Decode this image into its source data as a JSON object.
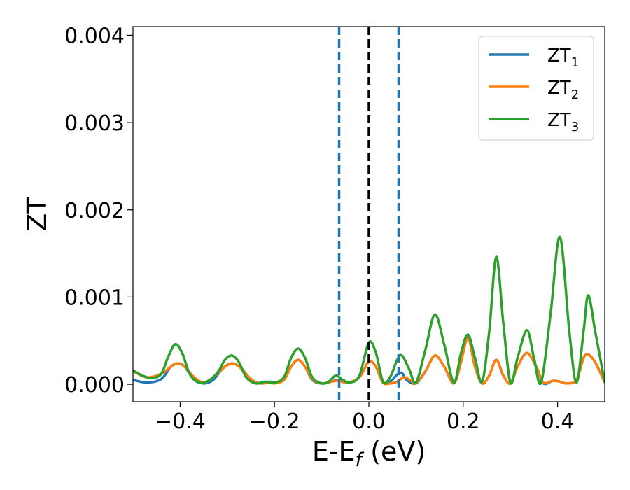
{
  "chart_data": {
    "type": "line",
    "xlabel": "E-E",
    "xlabel_sub": "f",
    "xlabel_unit": " (eV)",
    "ylabel": "ZT",
    "xlim": [
      -0.5,
      0.5
    ],
    "ylim": [
      -0.0002,
      0.0041
    ],
    "xticks": [
      -0.4,
      -0.2,
      0.0,
      0.2,
      0.4
    ],
    "xtick_labels": [
      "−0.4",
      "−0.2",
      "0.0",
      "0.2",
      "0.4"
    ],
    "yticks": [
      0.0,
      0.001,
      0.002,
      0.003,
      0.004
    ],
    "ytick_labels": [
      "0.000",
      "0.001",
      "0.002",
      "0.003",
      "0.004"
    ],
    "grid": false,
    "legend_position": "top-right",
    "vlines": [
      {
        "x": -0.063,
        "color": "#1f77b4",
        "style": "dashed"
      },
      {
        "x": 0.0,
        "color": "#000000",
        "style": "dashed"
      },
      {
        "x": 0.063,
        "color": "#1f77b4",
        "style": "dashed"
      }
    ],
    "series": [
      {
        "name": "ZT",
        "sub": "1",
        "color": "#1f77b4",
        "points": [
          [
            -0.5,
            5e-05
          ],
          [
            -0.47,
            2e-05
          ],
          [
            -0.44,
            6e-05
          ],
          [
            -0.42,
            0.0002
          ],
          [
            -0.405,
            0.00024
          ],
          [
            -0.39,
            0.0002
          ],
          [
            -0.37,
            5e-05
          ],
          [
            -0.35,
            1e-05
          ],
          [
            -0.33,
            5e-05
          ],
          [
            -0.31,
            0.00018
          ],
          [
            -0.29,
            0.00024
          ],
          [
            -0.27,
            0.00018
          ],
          [
            -0.25,
            5e-05
          ],
          [
            -0.23,
            1e-05
          ],
          [
            -0.21,
            3e-05
          ],
          [
            -0.2,
            2e-05
          ],
          [
            -0.18,
            5e-05
          ],
          [
            -0.165,
            0.0002
          ],
          [
            -0.15,
            0.00028
          ],
          [
            -0.135,
            0.0002
          ],
          [
            -0.12,
            5e-05
          ],
          [
            -0.1,
            1e-05
          ],
          [
            -0.08,
            3e-05
          ],
          [
            -0.065,
            5e-05
          ],
          [
            -0.045,
            2e-05
          ],
          [
            -0.02,
            8e-05
          ],
          [
            0.0,
            0.00026
          ],
          [
            0.015,
            0.0002
          ],
          [
            0.03,
            2e-05
          ],
          [
            0.045,
            3e-05
          ],
          [
            0.06,
            0.00011
          ],
          [
            0.07,
            0.00013
          ],
          [
            0.08,
            5e-05
          ],
          [
            0.1,
            1e-05
          ],
          [
            0.12,
            0.00015
          ],
          [
            0.14,
            0.00033
          ],
          [
            0.16,
            0.0002
          ],
          [
            0.18,
            1e-05
          ],
          [
            0.195,
            0.00025
          ],
          [
            0.21,
            0.00055
          ],
          [
            0.225,
            0.0002
          ],
          [
            0.24,
            1e-05
          ],
          [
            0.255,
            0.0001
          ],
          [
            0.27,
            0.00028
          ],
          [
            0.285,
            0.0001
          ],
          [
            0.3,
            1e-05
          ],
          [
            0.315,
            0.0002
          ],
          [
            0.335,
            0.00036
          ],
          [
            0.355,
            0.0002
          ],
          [
            0.37,
            1e-05
          ],
          [
            0.39,
            4e-05
          ],
          [
            0.405,
            3e-05
          ],
          [
            0.42,
            1e-05
          ],
          [
            0.44,
            5e-05
          ],
          [
            0.455,
            0.0003
          ],
          [
            0.465,
            0.00034
          ],
          [
            0.48,
            0.00025
          ],
          [
            0.5,
            2e-05
          ]
        ]
      },
      {
        "name": "ZT",
        "sub": "2",
        "color": "#ff7f0e",
        "points": [
          [
            -0.5,
            0.00015
          ],
          [
            -0.47,
            8e-05
          ],
          [
            -0.44,
            0.00012
          ],
          [
            -0.42,
            0.0002
          ],
          [
            -0.405,
            0.00024
          ],
          [
            -0.39,
            0.0002
          ],
          [
            -0.37,
            8e-05
          ],
          [
            -0.35,
            2e-05
          ],
          [
            -0.33,
            8e-05
          ],
          [
            -0.31,
            0.00018
          ],
          [
            -0.29,
            0.00024
          ],
          [
            -0.27,
            0.00018
          ],
          [
            -0.25,
            6e-05
          ],
          [
            -0.23,
            1e-05
          ],
          [
            -0.21,
            2e-05
          ],
          [
            -0.2,
            1e-05
          ],
          [
            -0.18,
            5e-05
          ],
          [
            -0.165,
            0.0002
          ],
          [
            -0.15,
            0.00028
          ],
          [
            -0.135,
            0.0002
          ],
          [
            -0.12,
            6e-05
          ],
          [
            -0.1,
            1e-05
          ],
          [
            -0.08,
            3e-05
          ],
          [
            -0.065,
            4e-05
          ],
          [
            -0.045,
            2e-05
          ],
          [
            -0.02,
            8e-05
          ],
          [
            0.0,
            0.00026
          ],
          [
            0.015,
            0.0002
          ],
          [
            0.03,
            2e-05
          ],
          [
            0.045,
            1e-05
          ],
          [
            0.06,
            3e-05
          ],
          [
            0.075,
            8e-05
          ],
          [
            0.09,
            4e-05
          ],
          [
            0.1,
            1e-05
          ],
          [
            0.12,
            0.00015
          ],
          [
            0.14,
            0.00033
          ],
          [
            0.16,
            0.0002
          ],
          [
            0.18,
            1e-05
          ],
          [
            0.195,
            0.00025
          ],
          [
            0.21,
            0.00053
          ],
          [
            0.225,
            0.0002
          ],
          [
            0.24,
            1e-05
          ],
          [
            0.255,
            0.0001
          ],
          [
            0.27,
            0.00028
          ],
          [
            0.285,
            0.0001
          ],
          [
            0.3,
            1e-05
          ],
          [
            0.315,
            0.0002
          ],
          [
            0.335,
            0.00036
          ],
          [
            0.355,
            0.0002
          ],
          [
            0.37,
            2e-05
          ],
          [
            0.39,
            4e-05
          ],
          [
            0.405,
            3e-05
          ],
          [
            0.42,
            1e-05
          ],
          [
            0.44,
            5e-05
          ],
          [
            0.455,
            0.0003
          ],
          [
            0.465,
            0.00034
          ],
          [
            0.48,
            0.00025
          ],
          [
            0.5,
            2e-05
          ]
        ]
      },
      {
        "name": "ZT",
        "sub": "3",
        "color": "#2ca02c",
        "points": [
          [
            -0.5,
            0.00016
          ],
          [
            -0.48,
            0.0001
          ],
          [
            -0.46,
            7e-05
          ],
          [
            -0.44,
            0.00012
          ],
          [
            -0.425,
            0.00032
          ],
          [
            -0.41,
            0.00046
          ],
          [
            -0.395,
            0.00035
          ],
          [
            -0.38,
            0.00012
          ],
          [
            -0.36,
            2e-05
          ],
          [
            -0.34,
            4e-05
          ],
          [
            -0.32,
            0.00014
          ],
          [
            -0.305,
            0.00028
          ],
          [
            -0.29,
            0.00033
          ],
          [
            -0.275,
            0.00025
          ],
          [
            -0.26,
            8e-05
          ],
          [
            -0.24,
            1e-05
          ],
          [
            -0.22,
            3e-05
          ],
          [
            -0.2,
            2e-05
          ],
          [
            -0.18,
            8e-05
          ],
          [
            -0.165,
            0.0003
          ],
          [
            -0.15,
            0.00041
          ],
          [
            -0.135,
            0.0003
          ],
          [
            -0.12,
            8e-05
          ],
          [
            -0.1,
            1e-05
          ],
          [
            -0.085,
            3e-05
          ],
          [
            -0.07,
            0.0001
          ],
          [
            -0.055,
            5e-05
          ],
          [
            -0.04,
            2e-05
          ],
          [
            -0.02,
            0.0001
          ],
          [
            0.0,
            0.00048
          ],
          [
            0.015,
            0.00036
          ],
          [
            0.03,
            3e-05
          ],
          [
            0.045,
            8e-05
          ],
          [
            0.06,
            0.00028
          ],
          [
            0.07,
            0.00033
          ],
          [
            0.085,
            0.00018
          ],
          [
            0.1,
            2e-05
          ],
          [
            0.12,
            0.0004
          ],
          [
            0.14,
            0.0008
          ],
          [
            0.16,
            0.00045
          ],
          [
            0.18,
            2e-05
          ],
          [
            0.195,
            0.00035
          ],
          [
            0.21,
            0.00057
          ],
          [
            0.225,
            0.0003
          ],
          [
            0.24,
            3e-05
          ],
          [
            0.255,
            0.0006
          ],
          [
            0.27,
            0.00146
          ],
          [
            0.285,
            0.0007
          ],
          [
            0.3,
            2e-05
          ],
          [
            0.315,
            0.0003
          ],
          [
            0.335,
            0.00062
          ],
          [
            0.35,
            0.0003
          ],
          [
            0.365,
            2e-05
          ],
          [
            0.385,
            0.0008
          ],
          [
            0.405,
            0.00169
          ],
          [
            0.425,
            0.0006
          ],
          [
            0.44,
            2e-05
          ],
          [
            0.455,
            0.0006
          ],
          [
            0.465,
            0.00102
          ],
          [
            0.48,
            0.0006
          ],
          [
            0.5,
            2e-05
          ]
        ]
      }
    ]
  }
}
